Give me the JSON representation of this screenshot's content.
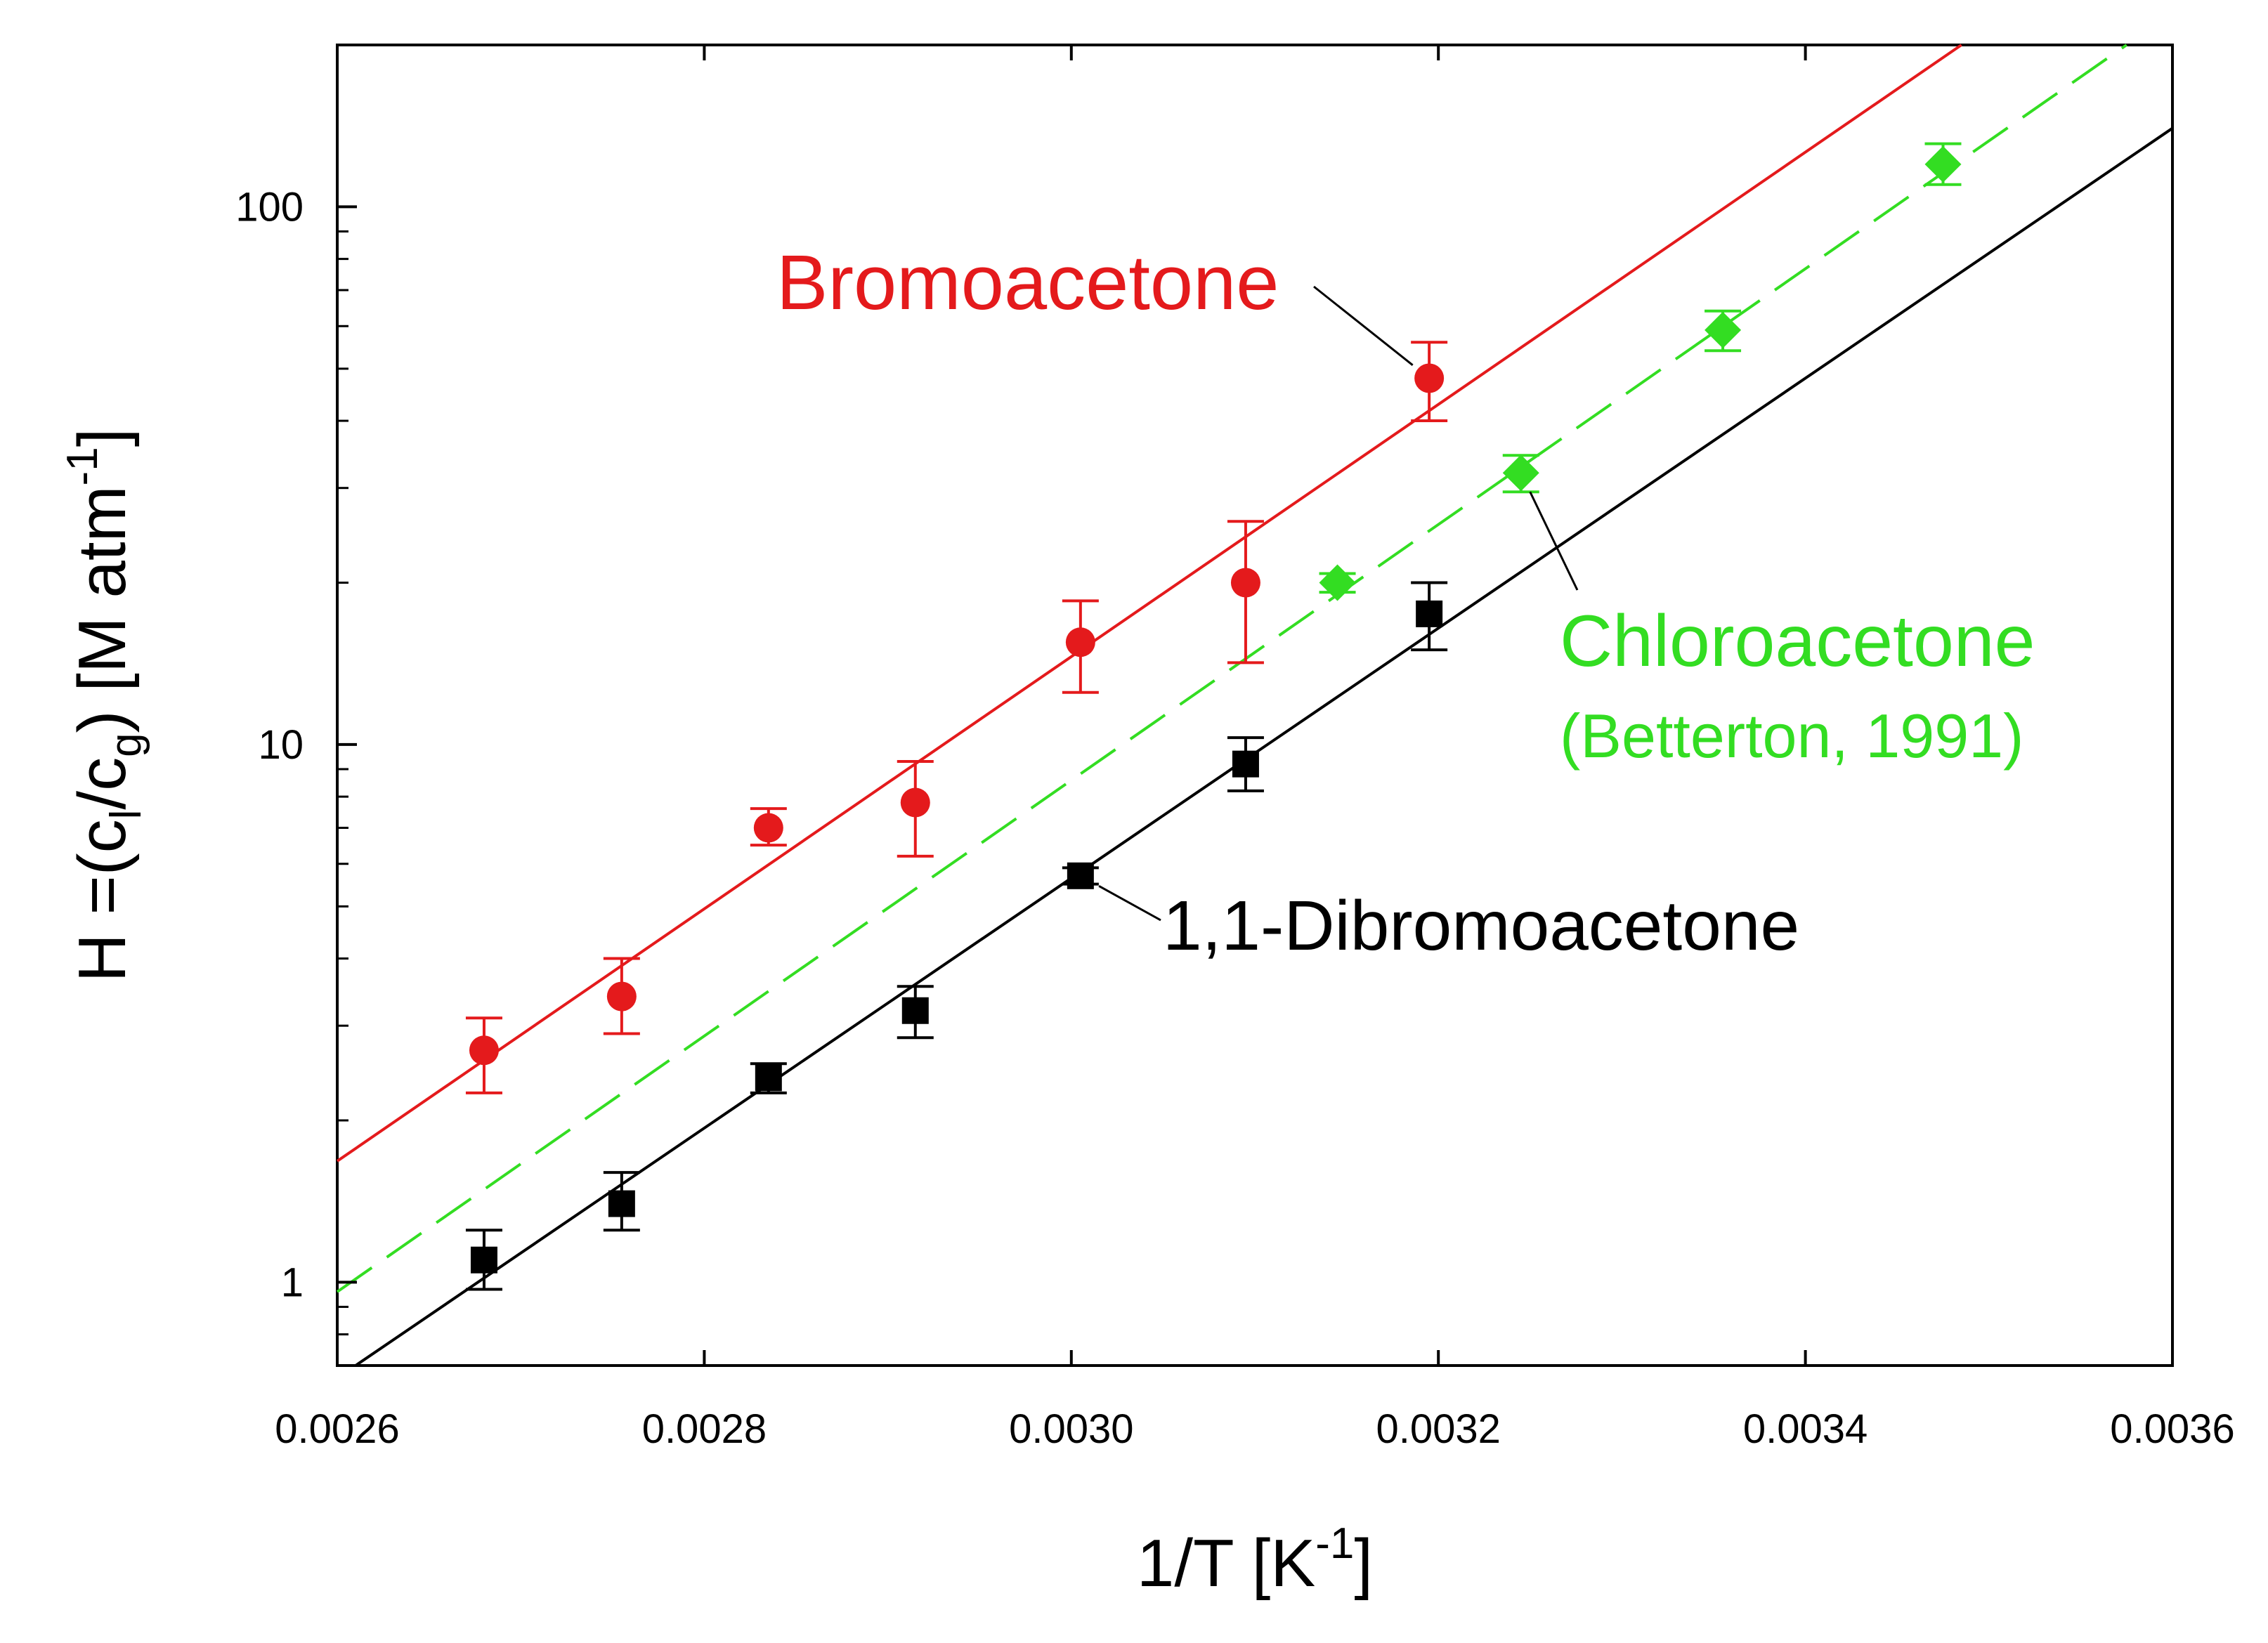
{
  "chart_data": {
    "type": "scatter",
    "title": "",
    "xlabel": "1/T [K-1]",
    "xlabel_parts": {
      "main": "1/T [K",
      "sup": "-1",
      "close": "]"
    },
    "ylabel": "H =(cl/cg) [M atm-1]",
    "ylabel_parts": {
      "prefix": "H =(c",
      "sub1": "l",
      "mid": "/c",
      "sub2": "g",
      "close": ") [M atm",
      "sup": "-1",
      "end": "]"
    },
    "xlim": [
      0.0026,
      0.0036
    ],
    "ylim": [
      0.7,
      200
    ],
    "yscale": "log",
    "grid": false,
    "x_ticks": [
      0.0026,
      0.0028,
      0.003,
      0.0032,
      0.0034,
      0.0036
    ],
    "x_tick_labels": [
      "0.0026",
      "0.0028",
      "0.0030",
      "0.0032",
      "0.0034",
      "0.0036"
    ],
    "y_ticks": [
      1,
      10,
      100
    ],
    "y_tick_labels": [
      "1",
      "10",
      "100"
    ],
    "series": [
      {
        "name": "Bromoacetone",
        "color": "#e41a1c",
        "marker": "circle",
        "x": [
          0.00268,
          0.002755,
          0.002835,
          0.002915,
          0.003005,
          0.003095,
          0.003195
        ],
        "y": [
          2.7,
          3.4,
          7.0,
          7.8,
          15.5,
          20.0,
          48.0
        ],
        "err_low": [
          2.25,
          2.9,
          6.5,
          6.2,
          12.5,
          14.2,
          40.0
        ],
        "err_high": [
          3.1,
          4.0,
          7.6,
          9.3,
          18.5,
          26.0,
          56.0
        ],
        "fit": {
          "x": [
            0.0026,
            0.003485
          ],
          "y": [
            1.68,
            200
          ],
          "style": "solid"
        }
      },
      {
        "name": "Chloroacetone",
        "subtitle": "(Betterton, 1991)",
        "color": "#33dd22",
        "marker": "diamond",
        "x": [
          0.003145,
          0.003245,
          0.003355,
          0.003475
        ],
        "y": [
          20.0,
          32.0,
          59.0,
          120.0
        ],
        "err_low": [
          19.2,
          29.5,
          54.0,
          110.0
        ],
        "err_high": [
          20.8,
          34.5,
          64.0,
          131.0
        ],
        "fit": {
          "x": [
            0.0026,
            0.003575
          ],
          "y": [
            0.96,
            200
          ],
          "style": "dashed"
        }
      },
      {
        "name": "1,1-Dibromoacetone",
        "color": "#000000",
        "marker": "square",
        "x": [
          0.00268,
          0.002755,
          0.002835,
          0.002915,
          0.003005,
          0.003095,
          0.003195
        ],
        "y": [
          1.1,
          1.4,
          2.4,
          3.2,
          5.7,
          9.2,
          17.5
        ],
        "err_low": [
          0.97,
          1.25,
          2.25,
          2.85,
          5.5,
          8.2,
          15.0
        ],
        "err_high": [
          1.25,
          1.6,
          2.55,
          3.55,
          5.9,
          10.3,
          20.0
        ],
        "fit": {
          "x": [
            0.00261,
            0.0036
          ],
          "y": [
            0.7,
            140
          ],
          "style": "solid"
        }
      }
    ],
    "annotations": [
      {
        "text": "Bromoacetone",
        "color": "#e41a1c",
        "target_series": 0,
        "target_point": 6
      },
      {
        "text": "Chloroacetone",
        "color": "#33dd22",
        "target_series": 1,
        "target_point": 1
      },
      {
        "text": "(Betterton, 1991)",
        "color": "#33dd22"
      },
      {
        "text": "1,1-Dibromoacetone",
        "color": "#000000",
        "target_series": 2,
        "target_point": 4
      }
    ]
  }
}
